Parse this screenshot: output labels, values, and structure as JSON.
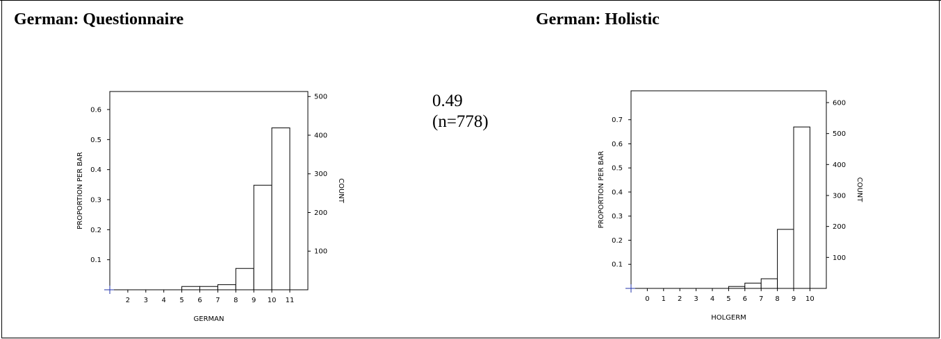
{
  "panels": {
    "left_title": "German: Questionnaire",
    "right_title": "German: Holistic"
  },
  "correlation": {
    "value": "0.49",
    "n_label": "(n=778)"
  },
  "chart_data": [
    {
      "type": "bar",
      "histogram": true,
      "title": "German: Questionnaire",
      "xlabel": "GERMAN",
      "ylabel": "PROPORTION PER BAR",
      "y2label": "COUNT",
      "x_bin_edges": [
        1,
        2,
        3,
        4,
        5,
        6,
        7,
        8,
        9,
        10,
        11
      ],
      "x_ticks": [
        2,
        3,
        4,
        5,
        6,
        7,
        8,
        9,
        10,
        11
      ],
      "bins": [
        [
          5,
          6
        ],
        [
          6,
          7
        ],
        [
          7,
          8
        ],
        [
          8,
          9
        ],
        [
          9,
          10
        ],
        [
          10,
          11
        ]
      ],
      "values": [
        0.011,
        0.011,
        0.017,
        0.071,
        0.348,
        0.539
      ],
      "counts": [
        9,
        9,
        13,
        55,
        271,
        420
      ],
      "ylim": [
        0,
        0.66
      ],
      "y_ticks": [
        0.1,
        0.2,
        0.3,
        0.4,
        0.5,
        0.6
      ],
      "y_tick_labels": [
        "0.1",
        "0.2",
        "0.3",
        "0.4",
        "0.5",
        "0.6"
      ],
      "y2_ticks": [
        100,
        200,
        300,
        400,
        500
      ],
      "grid": false
    },
    {
      "type": "bar",
      "histogram": true,
      "title": "German: Holistic",
      "xlabel": "HOLGERM",
      "ylabel": "PROPORTION PER BAR",
      "y2label": "COUNT",
      "x_bin_edges": [
        -1,
        0,
        1,
        2,
        3,
        4,
        5,
        6,
        7,
        8,
        9,
        10
      ],
      "x_ticks": [
        0,
        1,
        2,
        3,
        4,
        5,
        6,
        7,
        8,
        9,
        10
      ],
      "bins": [
        [
          5,
          6
        ],
        [
          6,
          7
        ],
        [
          7,
          8
        ],
        [
          8,
          9
        ],
        [
          9,
          10
        ]
      ],
      "values": [
        0.008,
        0.022,
        0.04,
        0.245,
        0.67
      ],
      "counts": [
        6,
        17,
        31,
        191,
        521
      ],
      "ylim": [
        0,
        0.82
      ],
      "y_ticks": [
        0.1,
        0.2,
        0.3,
        0.4,
        0.5,
        0.6,
        0.7
      ],
      "y_tick_labels": [
        "0.1",
        "0.2",
        "0.3",
        "0.4",
        "0.5",
        "0.6",
        "0.7"
      ],
      "y2_ticks": [
        100,
        200,
        300,
        400,
        500,
        600
      ],
      "grid": false
    }
  ]
}
